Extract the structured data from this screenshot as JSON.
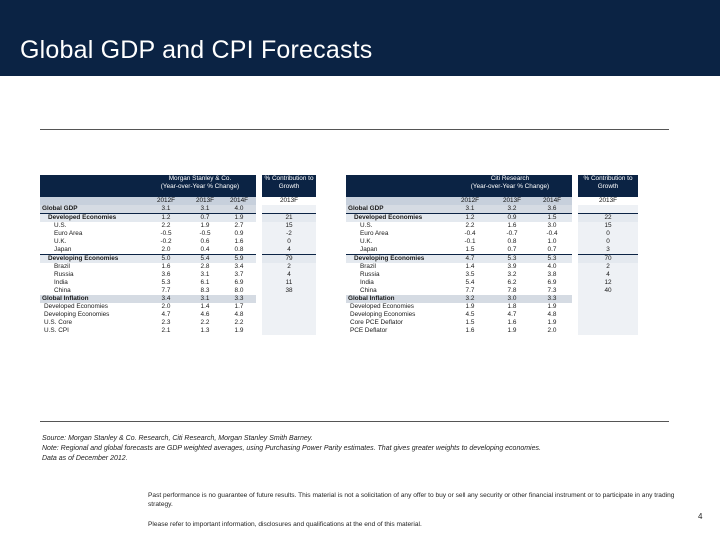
{
  "title": "Global GDP and CPI Forecasts",
  "left_table": {
    "header_lines": [
      "Morgan Stanley & Co.",
      "(Year-over-Year % Change)"
    ],
    "contrib_header_lines": [
      "% Contribution to",
      "Growth"
    ],
    "year_cols": [
      "2012F",
      "2013F",
      "2014F"
    ],
    "contrib_col": "2013F",
    "rows": [
      {
        "label": "Global GDP",
        "values": [
          "3.1",
          "3.1",
          "4.0"
        ],
        "contrib": ""
      },
      {
        "label": "Developed Economies",
        "values": [
          "1.2",
          "0.7",
          "1.9"
        ],
        "contrib": "21"
      },
      {
        "label": "U.S.",
        "values": [
          "2.2",
          "1.9",
          "2.7"
        ],
        "contrib": "15"
      },
      {
        "label": "Euro Area",
        "values": [
          "-0.5",
          "-0.5",
          "0.9"
        ],
        "contrib": "-2"
      },
      {
        "label": "U.K.",
        "values": [
          "-0.2",
          "0.6",
          "1.6"
        ],
        "contrib": "0"
      },
      {
        "label": "Japan",
        "values": [
          "2.0",
          "0.4",
          "0.8"
        ],
        "contrib": "4"
      },
      {
        "label": "Developing Economies",
        "values": [
          "5.0",
          "5.4",
          "5.9"
        ],
        "contrib": "79"
      },
      {
        "label": "Brazil",
        "values": [
          "1.6",
          "2.8",
          "3.4"
        ],
        "contrib": "2"
      },
      {
        "label": "Russia",
        "values": [
          "3.6",
          "3.1",
          "3.7"
        ],
        "contrib": "4"
      },
      {
        "label": "India",
        "values": [
          "5.3",
          "6.1",
          "6.9"
        ],
        "contrib": "11"
      },
      {
        "label": "China",
        "values": [
          "7.7",
          "8.3",
          "8.0"
        ],
        "contrib": "38"
      },
      {
        "label": "Global Inflation",
        "values": [
          "3.4",
          "3.1",
          "3.3"
        ],
        "contrib": ""
      },
      {
        "label": "Developed Economies",
        "values": [
          "2.0",
          "1.4",
          "1.7"
        ],
        "contrib": ""
      },
      {
        "label": "Developing Economies",
        "values": [
          "4.7",
          "4.6",
          "4.8"
        ],
        "contrib": ""
      },
      {
        "label": "U.S. Core",
        "values": [
          "2.3",
          "2.2",
          "2.2"
        ],
        "contrib": ""
      },
      {
        "label": "U.S. CPI",
        "values": [
          "2.1",
          "1.3",
          "1.9"
        ],
        "contrib": ""
      }
    ]
  },
  "right_table": {
    "header_lines": [
      "Citi Research",
      "(Year-over-Year % Change)"
    ],
    "contrib_header_lines": [
      "% Contribution to",
      "Growth"
    ],
    "year_cols": [
      "2012F",
      "2013F",
      "2014F"
    ],
    "contrib_col": "2013F",
    "rows": [
      {
        "label": "Global GDP",
        "values": [
          "3.1",
          "3.2",
          "3.6"
        ],
        "contrib": ""
      },
      {
        "label": "Developed Economies",
        "values": [
          "1.2",
          "0.9",
          "1.5"
        ],
        "contrib": "22"
      },
      {
        "label": "U.S.",
        "values": [
          "2.2",
          "1.6",
          "3.0"
        ],
        "contrib": "15"
      },
      {
        "label": "Euro Area",
        "values": [
          "-0.4",
          "-0.7",
          "-0.4"
        ],
        "contrib": "0"
      },
      {
        "label": "U.K.",
        "values": [
          "-0.1",
          "0.8",
          "1.0"
        ],
        "contrib": "0"
      },
      {
        "label": "Japan",
        "values": [
          "1.5",
          "0.7",
          "0.7"
        ],
        "contrib": "3"
      },
      {
        "label": "Developing Economies",
        "values": [
          "4.7",
          "5.3",
          "5.3"
        ],
        "contrib": "70"
      },
      {
        "label": "Brazil",
        "values": [
          "1.4",
          "3.9",
          "4.0"
        ],
        "contrib": "2"
      },
      {
        "label": "Russia",
        "values": [
          "3.5",
          "3.2",
          "3.8"
        ],
        "contrib": "4"
      },
      {
        "label": "India",
        "values": [
          "5.4",
          "6.2",
          "6.9"
        ],
        "contrib": "12"
      },
      {
        "label": "China",
        "values": [
          "7.7",
          "7.8",
          "7.3"
        ],
        "contrib": "40"
      },
      {
        "label": "Global Inflation",
        "values": [
          "3.2",
          "3.0",
          "3.3"
        ],
        "contrib": ""
      },
      {
        "label": "Developed Economies",
        "values": [
          "1.9",
          "1.8",
          "1.9"
        ],
        "contrib": ""
      },
      {
        "label": "Developing Economies",
        "values": [
          "4.5",
          "4.7",
          "4.8"
        ],
        "contrib": ""
      },
      {
        "label": "Core PCE Deflator",
        "values": [
          "1.5",
          "1.6",
          "1.9"
        ],
        "contrib": ""
      },
      {
        "label": "PCE Deflator",
        "values": [
          "1.6",
          "1.9",
          "2.0"
        ],
        "contrib": ""
      }
    ]
  },
  "notes": [
    "Source: Morgan Stanley & Co. Research, Citi Research, Morgan Stanley Smith Barney.",
    "Note: Regional and global forecasts are GDP weighted averages, using Purchasing Power Parity estimates. That gives greater weights to developing economies.",
    "Data as of December 2012."
  ],
  "disclaimer": "Past performance is no guarantee of future results. This material is not a solicitation of any offer to buy or sell any security or other financial instrument or to participate in any trading strategy.",
  "refer": "Please refer to important information, disclosures and qualifications at the end of this material.",
  "page_number": "4"
}
